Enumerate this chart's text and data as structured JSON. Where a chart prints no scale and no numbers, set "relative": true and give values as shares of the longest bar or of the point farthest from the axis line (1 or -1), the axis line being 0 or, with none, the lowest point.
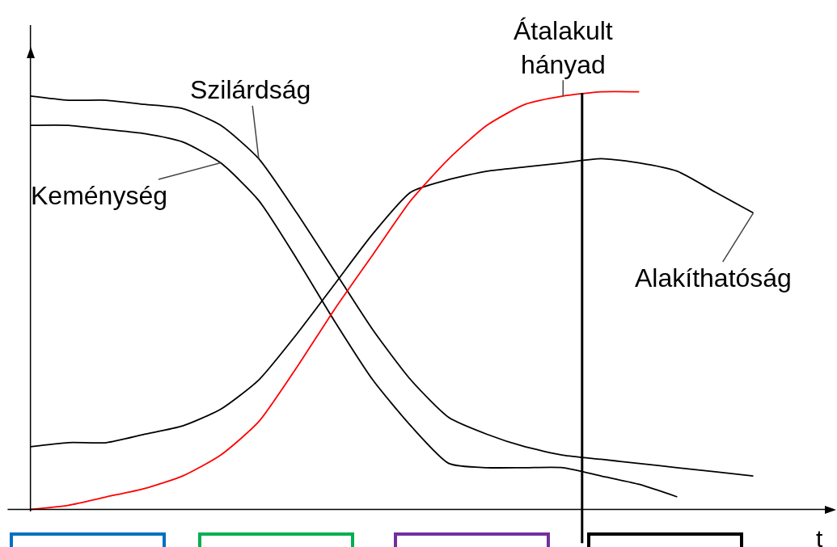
{
  "chart_data": {
    "type": "line",
    "relative": true,
    "xlabel": "t",
    "legend": false,
    "marker": "none",
    "line_style": "solid",
    "categories": [
      null,
      null,
      null,
      null,
      null,
      null,
      null,
      null,
      null,
      null,
      null,
      null,
      null,
      null,
      null,
      null,
      null,
      null,
      null,
      null,
      null
    ],
    "series": [
      {
        "name": "Szilárdság",
        "color": "#000000",
        "values": [
          0.99,
          0.98,
          0.98,
          0.97,
          0.96,
          0.92,
          0.84,
          0.71,
          0.57,
          0.43,
          0.31,
          0.22,
          0.18,
          0.15,
          0.13,
          0.12,
          0.11,
          0.1,
          0.09,
          0.08,
          null
        ]
      },
      {
        "name": "Keménység",
        "color": "#000000",
        "values": [
          0.92,
          0.92,
          0.91,
          0.9,
          0.88,
          0.83,
          0.74,
          0.6,
          0.45,
          0.31,
          0.2,
          0.11,
          0.1,
          0.1,
          0.1,
          0.08,
          0.06,
          0.03,
          null,
          null,
          null
        ]
      },
      {
        "name": "Alakíthatóság",
        "color": "#000000",
        "values": [
          0.15,
          0.16,
          0.16,
          0.18,
          0.2,
          0.24,
          0.31,
          0.42,
          0.54,
          0.66,
          0.76,
          0.79,
          0.81,
          0.82,
          0.83,
          0.84,
          0.83,
          0.81,
          0.76,
          0.71,
          null
        ]
      },
      {
        "name": "Átalakult hányad",
        "color": "#ff0000",
        "values": [
          0,
          0.01,
          0.03,
          0.05,
          0.08,
          0.13,
          0.21,
          0.34,
          0.48,
          0.61,
          0.74,
          0.84,
          0.92,
          0.97,
          0.99,
          1.0,
          1.0,
          null,
          null,
          null,
          null
        ]
      }
    ]
  }
}
